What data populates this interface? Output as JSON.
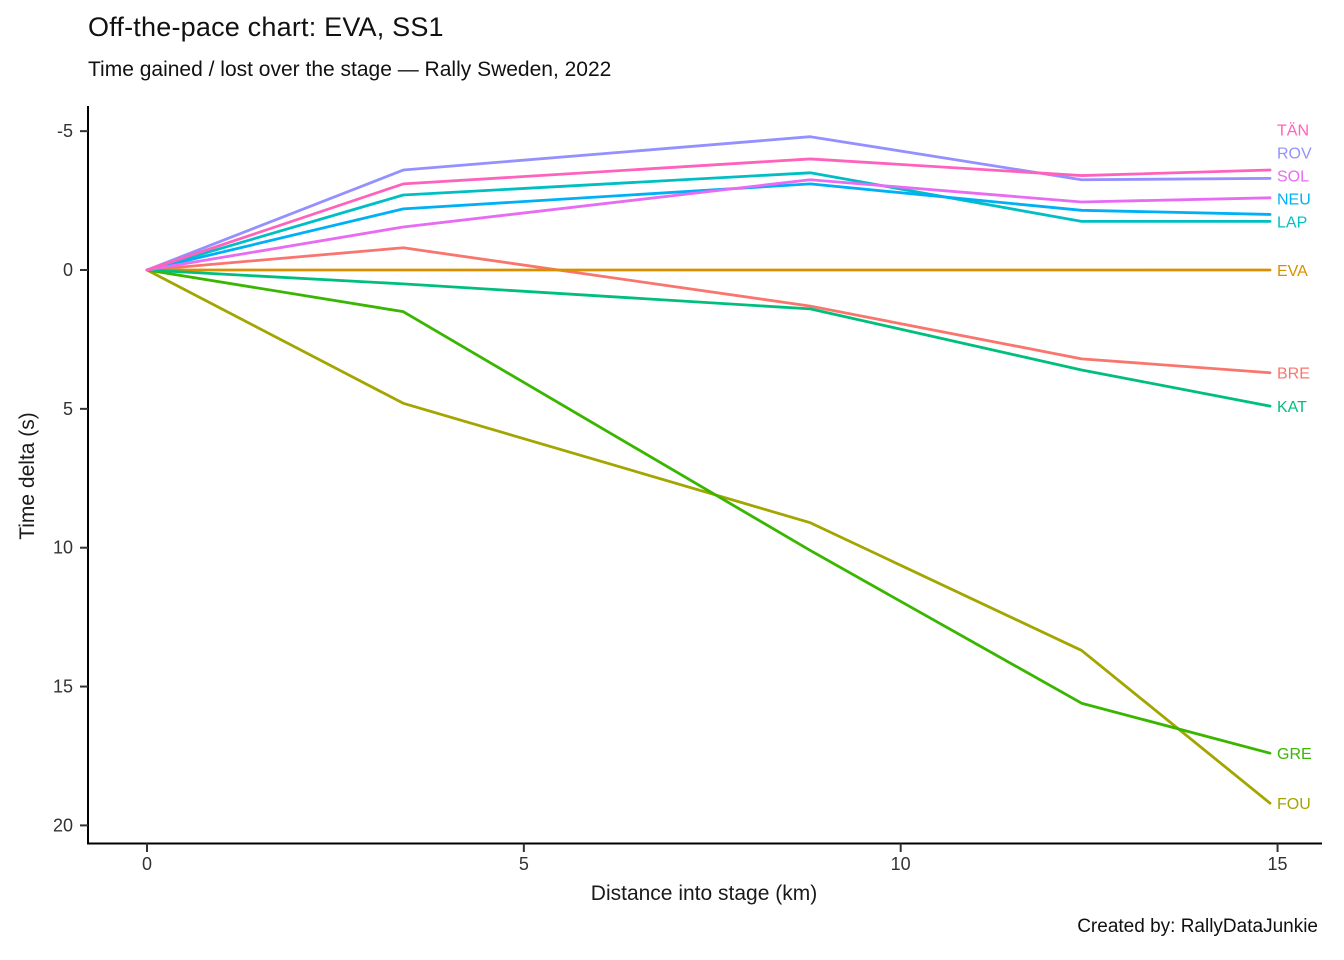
{
  "header": {
    "title": "Off-the-pace chart: EVA, SS1",
    "subtitle": "Time gained / lost over the stage — Rally Sweden, 2022"
  },
  "caption": "Created by: RallyDataJunkie",
  "chart_data": {
    "type": "line",
    "title": "Off-the-pace chart: EVA, SS1",
    "subtitle": "Time gained / lost over the stage — Rally Sweden, 2022",
    "caption": "Created by: RallyDataJunkie",
    "xlabel": "Distance into stage (km)",
    "ylabel": "Time delta (s)",
    "grid": false,
    "legend_position": "labels-at-line-ends-right",
    "x_ticks": [
      0,
      5,
      10,
      15
    ],
    "y_ticks": [
      -5,
      0,
      5,
      10,
      15,
      20
    ],
    "xlim": [
      0,
      15
    ],
    "ylim": [
      -5,
      20
    ],
    "y_axis_reversed": true,
    "x_km": [
      0,
      3.4,
      8.8,
      12.4,
      14.9
    ],
    "series": [
      {
        "code": "BRE",
        "color": "#F8766D",
        "values": [
          0,
          -0.8,
          1.3,
          3.2,
          3.7
        ]
      },
      {
        "code": "EVA",
        "color": "#D89000",
        "values": [
          0,
          0,
          0,
          0,
          0
        ]
      },
      {
        "code": "FOU",
        "color": "#A3A500",
        "values": [
          0,
          4.8,
          9.1,
          13.7,
          19.2
        ]
      },
      {
        "code": "GRE",
        "color": "#39B600",
        "values": [
          0,
          1.5,
          10.1,
          15.6,
          17.4
        ]
      },
      {
        "code": "KAT",
        "color": "#00BF7D",
        "values": [
          0,
          0.5,
          1.4,
          3.6,
          4.9
        ]
      },
      {
        "code": "LAP",
        "color": "#00BFC4",
        "values": [
          0,
          -2.7,
          -3.5,
          -1.75,
          -1.75
        ]
      },
      {
        "code": "NEU",
        "color": "#00B0F6",
        "values": [
          0,
          -2.2,
          -3.1,
          -2.15,
          -2.0
        ]
      },
      {
        "code": "ROV",
        "color": "#9590FF",
        "values": [
          0,
          -3.6,
          -4.8,
          -3.25,
          -3.3
        ]
      },
      {
        "code": "SOL",
        "color": "#E76BF3",
        "values": [
          0,
          -1.55,
          -3.25,
          -2.45,
          -2.6
        ]
      },
      {
        "code": "TÄN",
        "color": "#FF62BC",
        "values": [
          0,
          -3.1,
          -4.0,
          -3.4,
          -3.6
        ]
      }
    ]
  }
}
